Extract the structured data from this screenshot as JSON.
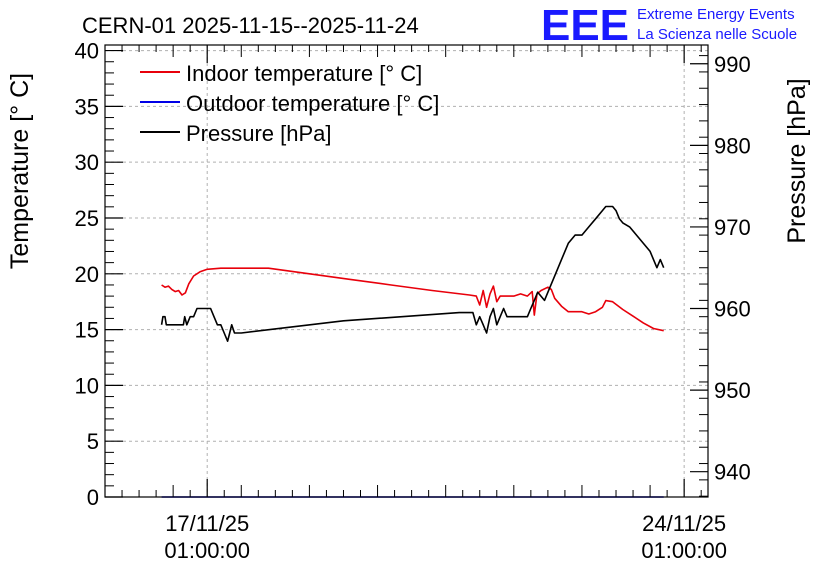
{
  "header": {
    "title": "CERN-01 2025-11-15--2025-11-24",
    "logo_text": "EEE",
    "org_line1": "Extreme Energy Events",
    "org_line2": "La Scienza nelle Scuole"
  },
  "colors": {
    "indoor": "#e8000b",
    "outdoor": "#0000e6",
    "pressure": "#000000",
    "logo": "#1a1aff",
    "grid": "#b0b0b0"
  },
  "chart_data": {
    "type": "line",
    "title": "CERN-01 2025-11-15--2025-11-24",
    "x_unit": "days",
    "x_range": [
      0,
      8.85
    ],
    "x_ticks": [
      {
        "x": 1.5,
        "date": "17/11/25",
        "time": "01:00:00"
      },
      {
        "x": 8.5,
        "date": "24/11/25",
        "time": "01:00:00"
      }
    ],
    "left_axis": {
      "label": "Temperature [° C]",
      "range": [
        0,
        40.5
      ],
      "ticks": [
        0,
        5,
        10,
        15,
        20,
        25,
        30,
        35,
        40
      ]
    },
    "right_axis": {
      "label": "Pressure [hPa]",
      "range": [
        936.9,
        992.3
      ],
      "ticks": [
        940,
        950,
        960,
        970,
        980,
        990
      ]
    },
    "legend": {
      "placement": "top-left",
      "entries": [
        "Indoor temperature [° C]",
        "Outdoor temperature [° C]",
        "Pressure [hPa]"
      ]
    },
    "grid": true,
    "series": [
      {
        "name": "Indoor temperature [° C]",
        "axis": "left",
        "points": [
          [
            0.83,
            19.0
          ],
          [
            0.88,
            18.8
          ],
          [
            0.93,
            18.9
          ],
          [
            0.98,
            18.6
          ],
          [
            1.03,
            18.4
          ],
          [
            1.08,
            18.5
          ],
          [
            1.13,
            18.1
          ],
          [
            1.18,
            18.3
          ],
          [
            1.23,
            19.1
          ],
          [
            1.3,
            19.8
          ],
          [
            1.4,
            20.2
          ],
          [
            1.5,
            20.4
          ],
          [
            1.7,
            20.5
          ],
          [
            2.0,
            20.5
          ],
          [
            2.4,
            20.5
          ],
          [
            3.0,
            20.0
          ],
          [
            3.6,
            19.5
          ],
          [
            4.2,
            19.0
          ],
          [
            4.8,
            18.5
          ],
          [
            5.35,
            18.1
          ],
          [
            5.45,
            18.0
          ],
          [
            5.5,
            17.2
          ],
          [
            5.55,
            18.5
          ],
          [
            5.6,
            17.0
          ],
          [
            5.65,
            18.2
          ],
          [
            5.7,
            18.9
          ],
          [
            5.75,
            17.5
          ],
          [
            5.8,
            18.0
          ],
          [
            6.0,
            18.0
          ],
          [
            6.1,
            18.2
          ],
          [
            6.2,
            18.0
          ],
          [
            6.27,
            18.4
          ],
          [
            6.3,
            16.3
          ],
          [
            6.34,
            18.2
          ],
          [
            6.4,
            18.5
          ],
          [
            6.5,
            18.8
          ],
          [
            6.55,
            18.6
          ],
          [
            6.6,
            17.8
          ],
          [
            6.7,
            17.1
          ],
          [
            6.8,
            16.6
          ],
          [
            6.9,
            16.6
          ],
          [
            7.0,
            16.6
          ],
          [
            7.1,
            16.4
          ],
          [
            7.2,
            16.6
          ],
          [
            7.3,
            17.0
          ],
          [
            7.35,
            17.6
          ],
          [
            7.45,
            17.5
          ],
          [
            7.6,
            16.8
          ],
          [
            7.75,
            16.2
          ],
          [
            7.9,
            15.6
          ],
          [
            8.05,
            15.1
          ],
          [
            8.2,
            14.9
          ]
        ]
      },
      {
        "name": "Outdoor temperature [° C]",
        "axis": "left",
        "points": [
          [
            0.83,
            0.0
          ],
          [
            8.2,
            0.0
          ]
        ]
      },
      {
        "name": "Pressure [hPa]",
        "axis": "right",
        "points": [
          [
            0.83,
            958.0
          ],
          [
            0.85,
            959.0
          ],
          [
            0.88,
            959.0
          ],
          [
            0.9,
            958.0
          ],
          [
            1.15,
            958.0
          ],
          [
            1.17,
            959.0
          ],
          [
            1.2,
            958.0
          ],
          [
            1.25,
            959.0
          ],
          [
            1.3,
            959.0
          ],
          [
            1.35,
            960.0
          ],
          [
            1.55,
            960.0
          ],
          [
            1.6,
            959.0
          ],
          [
            1.65,
            958.0
          ],
          [
            1.7,
            958.0
          ],
          [
            1.75,
            957.0
          ],
          [
            1.8,
            956.0
          ],
          [
            1.83,
            957.0
          ],
          [
            1.86,
            958.0
          ],
          [
            1.9,
            957.0
          ],
          [
            2.0,
            957.0
          ],
          [
            3.5,
            958.5
          ],
          [
            5.2,
            959.5
          ],
          [
            5.4,
            959.5
          ],
          [
            5.45,
            958.0
          ],
          [
            5.5,
            959.0
          ],
          [
            5.55,
            958.0
          ],
          [
            5.6,
            957.0
          ],
          [
            5.65,
            959.0
          ],
          [
            5.7,
            960.0
          ],
          [
            5.75,
            958.0
          ],
          [
            5.8,
            959.0
          ],
          [
            5.85,
            960.0
          ],
          [
            5.9,
            959.0
          ],
          [
            6.0,
            959.0
          ],
          [
            6.2,
            959.0
          ],
          [
            6.25,
            960.0
          ],
          [
            6.3,
            961.0
          ],
          [
            6.35,
            962.0
          ],
          [
            6.45,
            961.0
          ],
          [
            6.5,
            962.0
          ],
          [
            6.6,
            964.0
          ],
          [
            6.7,
            966.0
          ],
          [
            6.8,
            968.0
          ],
          [
            6.9,
            969.0
          ],
          [
            7.0,
            969.0
          ],
          [
            7.1,
            970.0
          ],
          [
            7.2,
            971.0
          ],
          [
            7.3,
            972.0
          ],
          [
            7.35,
            972.5
          ],
          [
            7.45,
            972.5
          ],
          [
            7.5,
            972.0
          ],
          [
            7.55,
            971.0
          ],
          [
            7.6,
            970.5
          ],
          [
            7.7,
            970.0
          ],
          [
            7.8,
            969.0
          ],
          [
            7.9,
            968.0
          ],
          [
            8.0,
            967.0
          ],
          [
            8.05,
            966.0
          ],
          [
            8.1,
            965.0
          ],
          [
            8.15,
            966.0
          ],
          [
            8.2,
            965.0
          ]
        ]
      }
    ]
  }
}
